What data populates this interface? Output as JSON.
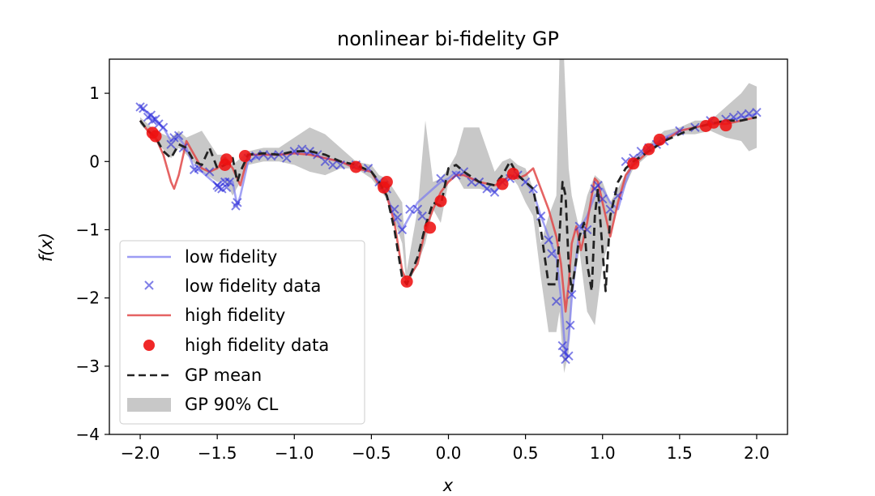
{
  "chart_data": {
    "type": "line",
    "title": "nonlinear bi-fidelity GP",
    "xlabel": "x",
    "ylabel": "f(x)",
    "xlim": [
      -2.2,
      2.2
    ],
    "ylim": [
      -4,
      1.5
    ],
    "xticks": [
      -2.0,
      -1.5,
      -1.0,
      -0.5,
      0.0,
      0.5,
      1.0,
      1.5,
      2.0
    ],
    "xtick_labels": [
      "−2.0",
      "−1.5",
      "−1.0",
      "−0.5",
      "0.0",
      "0.5",
      "1.0",
      "1.5",
      "2.0"
    ],
    "yticks": [
      1,
      0,
      -1,
      -2,
      -3,
      -4
    ],
    "ytick_labels": [
      "1",
      "0",
      "−1",
      "−2",
      "−3",
      "−4"
    ],
    "grid": false,
    "legend_placement": "lower-left",
    "legend": [
      "low fidelity",
      "low fidelity data",
      "high fidelity",
      "high fidelity data",
      "GP mean",
      "GP 90% CL"
    ],
    "colors": {
      "low_fidelity": "#7b7bf0",
      "low_fidelity_data": "#2a2ad8",
      "high_fidelity": "#e04848",
      "high_fidelity_data": "#ee1111",
      "gp_mean": "#222222",
      "gp_cl": "#c8c8c8"
    },
    "series": [
      {
        "name": "GP 90% CL",
        "kind": "band",
        "x": [
          -2.0,
          -1.9,
          -1.8,
          -1.75,
          -1.7,
          -1.6,
          -1.5,
          -1.45,
          -1.4,
          -1.35,
          -1.3,
          -1.2,
          -1.1,
          -1.0,
          -0.9,
          -0.8,
          -0.7,
          -0.6,
          -0.5,
          -0.45,
          -0.4,
          -0.3,
          -0.27,
          -0.2,
          -0.15,
          -0.1,
          -0.05,
          0.0,
          0.05,
          0.1,
          0.2,
          0.3,
          0.35,
          0.4,
          0.45,
          0.5,
          0.55,
          0.6,
          0.65,
          0.7,
          0.72,
          0.75,
          0.78,
          0.8,
          0.85,
          0.9,
          0.95,
          1.0,
          1.05,
          1.1,
          1.2,
          1.3,
          1.4,
          1.5,
          1.6,
          1.7,
          1.8,
          1.9,
          1.95,
          2.0
        ],
        "upper": [
          0.65,
          0.45,
          0.35,
          0.45,
          0.35,
          0.45,
          0.1,
          0.1,
          -0.05,
          0.05,
          0.15,
          0.2,
          0.2,
          0.35,
          0.5,
          0.4,
          0.2,
          0.0,
          -0.05,
          -0.2,
          -0.25,
          -0.6,
          -1.6,
          -0.7,
          0.6,
          -0.3,
          -0.25,
          -0.1,
          0.1,
          0.5,
          0.5,
          -0.15,
          0.0,
          0.05,
          -0.05,
          -0.1,
          -0.4,
          -1.2,
          -0.8,
          -0.5,
          1.5,
          1.5,
          -0.1,
          -0.5,
          -1.0,
          -0.5,
          -0.2,
          -0.3,
          -0.6,
          -0.4,
          0.05,
          0.25,
          0.45,
          0.5,
          0.6,
          0.6,
          0.8,
          1.0,
          1.15,
          1.1
        ],
        "lower": [
          0.55,
          0.3,
          0.05,
          0.2,
          0.1,
          -0.15,
          -0.3,
          -0.3,
          -0.5,
          -0.3,
          -0.05,
          0.0,
          0.0,
          -0.05,
          -0.15,
          -0.2,
          -0.1,
          -0.1,
          -0.25,
          -0.4,
          -0.55,
          -1.2,
          -1.85,
          -1.5,
          -1.2,
          -0.7,
          -0.9,
          -0.3,
          -0.2,
          -0.4,
          -0.4,
          -0.45,
          -0.3,
          -0.2,
          -0.35,
          -0.6,
          -0.8,
          -1.7,
          -2.5,
          -2.5,
          -2.2,
          -3.1,
          -2.8,
          -2.0,
          -1.3,
          -2.2,
          -2.4,
          -1.5,
          -1.1,
          -0.6,
          -0.1,
          0.1,
          0.3,
          0.4,
          0.4,
          0.45,
          0.35,
          0.3,
          0.15,
          0.2
        ]
      },
      {
        "name": "low fidelity",
        "kind": "line",
        "x": [
          -2.0,
          -1.95,
          -1.9,
          -1.85,
          -1.8,
          -1.75,
          -1.7,
          -1.65,
          -1.6,
          -1.55,
          -1.5,
          -1.45,
          -1.4,
          -1.37,
          -1.35,
          -1.3,
          -1.2,
          -1.1,
          -1.0,
          -0.9,
          -0.8,
          -0.7,
          -0.6,
          -0.5,
          -0.45,
          -0.4,
          -0.35,
          -0.3,
          -0.25,
          -0.2,
          -0.15,
          -0.1,
          -0.05,
          0.0,
          0.05,
          0.1,
          0.2,
          0.25,
          0.3,
          0.35,
          0.4,
          0.45,
          0.5,
          0.55,
          0.6,
          0.65,
          0.7,
          0.73,
          0.76,
          0.78,
          0.8,
          0.85,
          0.9,
          0.95,
          1.0,
          1.05,
          1.1,
          1.15,
          1.2,
          1.3,
          1.4,
          1.5,
          1.6,
          1.7,
          1.8,
          1.9,
          2.0
        ],
        "y": [
          0.8,
          0.7,
          0.6,
          0.5,
          0.3,
          0.35,
          0.2,
          -0.1,
          -0.15,
          -0.25,
          -0.35,
          -0.25,
          -0.3,
          -0.65,
          -0.5,
          0.0,
          0.1,
          0.1,
          0.15,
          0.12,
          0.05,
          0.0,
          -0.1,
          -0.15,
          -0.3,
          -0.5,
          -0.8,
          -1.0,
          -0.8,
          -0.6,
          -0.5,
          -0.4,
          -0.3,
          -0.25,
          -0.15,
          -0.2,
          -0.3,
          -0.4,
          -0.45,
          -0.3,
          -0.25,
          -0.2,
          -0.3,
          -0.45,
          -0.8,
          -1.1,
          -1.4,
          -2.0,
          -2.85,
          -2.6,
          -2.0,
          -1.0,
          -0.8,
          -0.5,
          -0.4,
          -0.6,
          -0.7,
          -0.3,
          0.0,
          0.2,
          0.35,
          0.45,
          0.5,
          0.55,
          0.6,
          0.65,
          0.7
        ]
      },
      {
        "name": "high fidelity",
        "kind": "line",
        "x": [
          -2.0,
          -1.95,
          -1.9,
          -1.85,
          -1.8,
          -1.78,
          -1.75,
          -1.7,
          -1.65,
          -1.6,
          -1.55,
          -1.5,
          -1.45,
          -1.4,
          -1.35,
          -1.3,
          -1.2,
          -1.1,
          -1.0,
          -0.9,
          -0.8,
          -0.7,
          -0.6,
          -0.5,
          -0.45,
          -0.4,
          -0.35,
          -0.3,
          -0.27,
          -0.2,
          -0.15,
          -0.1,
          -0.05,
          0.0,
          0.05,
          0.1,
          0.2,
          0.3,
          0.35,
          0.4,
          0.45,
          0.5,
          0.55,
          0.6,
          0.65,
          0.7,
          0.73,
          0.76,
          0.78,
          0.8,
          0.83,
          0.86,
          0.9,
          0.93,
          0.95,
          0.97,
          1.0,
          1.05,
          1.1,
          1.15,
          1.2,
          1.3,
          1.4,
          1.5,
          1.6,
          1.7,
          1.8,
          1.9,
          2.0
        ],
        "y": [
          0.6,
          0.45,
          0.35,
          0.1,
          -0.3,
          -0.4,
          -0.2,
          0.3,
          0.1,
          -0.1,
          -0.15,
          -0.1,
          0.05,
          -0.1,
          -0.35,
          0.1,
          0.1,
          0.1,
          0.12,
          0.1,
          0.05,
          0.0,
          -0.1,
          -0.15,
          -0.35,
          -0.5,
          -0.9,
          -1.6,
          -1.75,
          -1.5,
          -1.0,
          -0.7,
          -0.45,
          -0.3,
          -0.2,
          -0.2,
          -0.3,
          -0.35,
          -0.3,
          -0.2,
          -0.25,
          -0.2,
          -0.1,
          -0.4,
          -0.7,
          -1.1,
          -1.5,
          -2.2,
          -1.8,
          -1.2,
          -0.95,
          -1.3,
          -0.9,
          -0.5,
          -0.25,
          -0.3,
          -0.6,
          -1.1,
          -0.6,
          -0.2,
          -0.05,
          0.15,
          0.3,
          0.45,
          0.5,
          0.55,
          0.55,
          0.6,
          0.65
        ]
      },
      {
        "name": "GP mean",
        "kind": "dashed",
        "x": [
          -2.0,
          -1.95,
          -1.9,
          -1.85,
          -1.8,
          -1.75,
          -1.7,
          -1.65,
          -1.6,
          -1.55,
          -1.5,
          -1.45,
          -1.4,
          -1.37,
          -1.35,
          -1.3,
          -1.2,
          -1.1,
          -1.0,
          -0.9,
          -0.8,
          -0.7,
          -0.6,
          -0.5,
          -0.45,
          -0.4,
          -0.35,
          -0.3,
          -0.27,
          -0.2,
          -0.15,
          -0.1,
          -0.05,
          0.0,
          0.05,
          0.1,
          0.2,
          0.3,
          0.35,
          0.4,
          0.45,
          0.5,
          0.55,
          0.6,
          0.65,
          0.7,
          0.72,
          0.74,
          0.76,
          0.78,
          0.8,
          0.85,
          0.88,
          0.9,
          0.93,
          0.95,
          0.97,
          1.0,
          1.02,
          1.05,
          1.1,
          1.15,
          1.2,
          1.3,
          1.4,
          1.5,
          1.6,
          1.7,
          1.8,
          1.9,
          2.0
        ],
        "y": [
          0.6,
          0.45,
          0.35,
          0.15,
          0.05,
          0.25,
          0.2,
          0.0,
          -0.05,
          0.2,
          -0.1,
          -0.05,
          0.05,
          -0.3,
          -0.15,
          0.1,
          0.12,
          0.1,
          0.15,
          0.15,
          0.1,
          0.0,
          -0.05,
          -0.15,
          -0.3,
          -0.5,
          -1.0,
          -1.7,
          -1.8,
          -1.4,
          -0.95,
          -0.6,
          -0.65,
          -0.1,
          -0.05,
          -0.15,
          -0.3,
          -0.35,
          -0.2,
          0.0,
          -0.2,
          -0.3,
          -0.4,
          -1.0,
          -1.8,
          -1.8,
          -1.1,
          -0.3,
          -0.5,
          -1.5,
          -1.9,
          -1.1,
          -0.9,
          -1.5,
          -1.9,
          -0.8,
          -0.4,
          -1.3,
          -1.9,
          -0.8,
          -0.3,
          -0.1,
          0.0,
          0.15,
          0.3,
          0.4,
          0.5,
          0.55,
          0.6,
          0.6,
          0.65
        ]
      },
      {
        "name": "low fidelity data",
        "kind": "markers-x",
        "x": [
          -2.0,
          -1.98,
          -1.95,
          -1.93,
          -1.92,
          -1.9,
          -1.88,
          -1.85,
          -1.8,
          -1.78,
          -1.75,
          -1.72,
          -1.65,
          -1.62,
          -1.55,
          -1.5,
          -1.49,
          -1.47,
          -1.45,
          -1.44,
          -1.42,
          -1.38,
          -1.37,
          -1.3,
          -1.25,
          -1.2,
          -1.15,
          -1.1,
          -1.05,
          -1.0,
          -0.95,
          -0.9,
          -0.85,
          -0.8,
          -0.75,
          -0.7,
          -0.6,
          -0.52,
          -0.45,
          -0.42,
          -0.4,
          -0.35,
          -0.33,
          -0.3,
          -0.25,
          -0.2,
          -0.17,
          -0.05,
          0.05,
          0.1,
          0.15,
          0.2,
          0.25,
          0.3,
          0.35,
          0.4,
          0.45,
          0.5,
          0.55,
          0.6,
          0.65,
          0.67,
          0.7,
          0.74,
          0.75,
          0.76,
          0.78,
          0.79,
          0.8,
          0.85,
          0.9,
          0.95,
          0.97,
          1.0,
          1.05,
          1.1,
          1.15,
          1.2,
          1.25,
          1.3,
          1.35,
          1.4,
          1.5,
          1.6,
          1.7,
          1.8,
          1.85,
          1.9,
          1.95,
          2.0
        ],
        "y": [
          0.8,
          0.78,
          0.65,
          0.68,
          0.6,
          0.62,
          0.55,
          0.5,
          0.25,
          0.35,
          0.38,
          0.2,
          -0.12,
          -0.1,
          -0.15,
          -0.35,
          -0.38,
          -0.4,
          -0.3,
          -0.38,
          -0.3,
          -0.65,
          -0.6,
          0.05,
          0.08,
          0.1,
          0.08,
          0.1,
          0.05,
          0.15,
          0.18,
          0.15,
          0.1,
          0.0,
          -0.05,
          -0.05,
          -0.05,
          -0.1,
          -0.3,
          -0.35,
          -0.4,
          -0.7,
          -0.82,
          -1.0,
          -0.7,
          -0.7,
          -0.8,
          -0.25,
          -0.2,
          -0.15,
          -0.3,
          -0.3,
          -0.4,
          -0.45,
          -0.3,
          -0.25,
          -0.2,
          -0.3,
          -0.4,
          -0.8,
          -1.15,
          -1.35,
          -2.05,
          -2.7,
          -2.8,
          -2.9,
          -2.85,
          -2.4,
          -1.95,
          -0.95,
          -1.0,
          -0.4,
          -0.35,
          -0.55,
          -0.7,
          -0.5,
          0.0,
          0.05,
          0.15,
          0.2,
          0.25,
          0.3,
          0.45,
          0.5,
          0.6,
          0.62,
          0.65,
          0.68,
          0.7,
          0.72
        ]
      },
      {
        "name": "high fidelity data",
        "kind": "markers-o",
        "x": [
          -1.92,
          -1.9,
          -1.45,
          -1.44,
          -1.32,
          -0.6,
          -0.42,
          -0.4,
          -0.27,
          -0.12,
          -0.05,
          0.35,
          0.42,
          1.2,
          1.3,
          1.37,
          1.67,
          1.72,
          1.8
        ],
        "y": [
          0.42,
          0.37,
          -0.05,
          0.03,
          0.08,
          -0.08,
          -0.38,
          -0.3,
          -1.76,
          -0.97,
          -0.58,
          -0.33,
          -0.18,
          -0.03,
          0.18,
          0.32,
          0.52,
          0.57,
          0.53
        ]
      }
    ]
  }
}
